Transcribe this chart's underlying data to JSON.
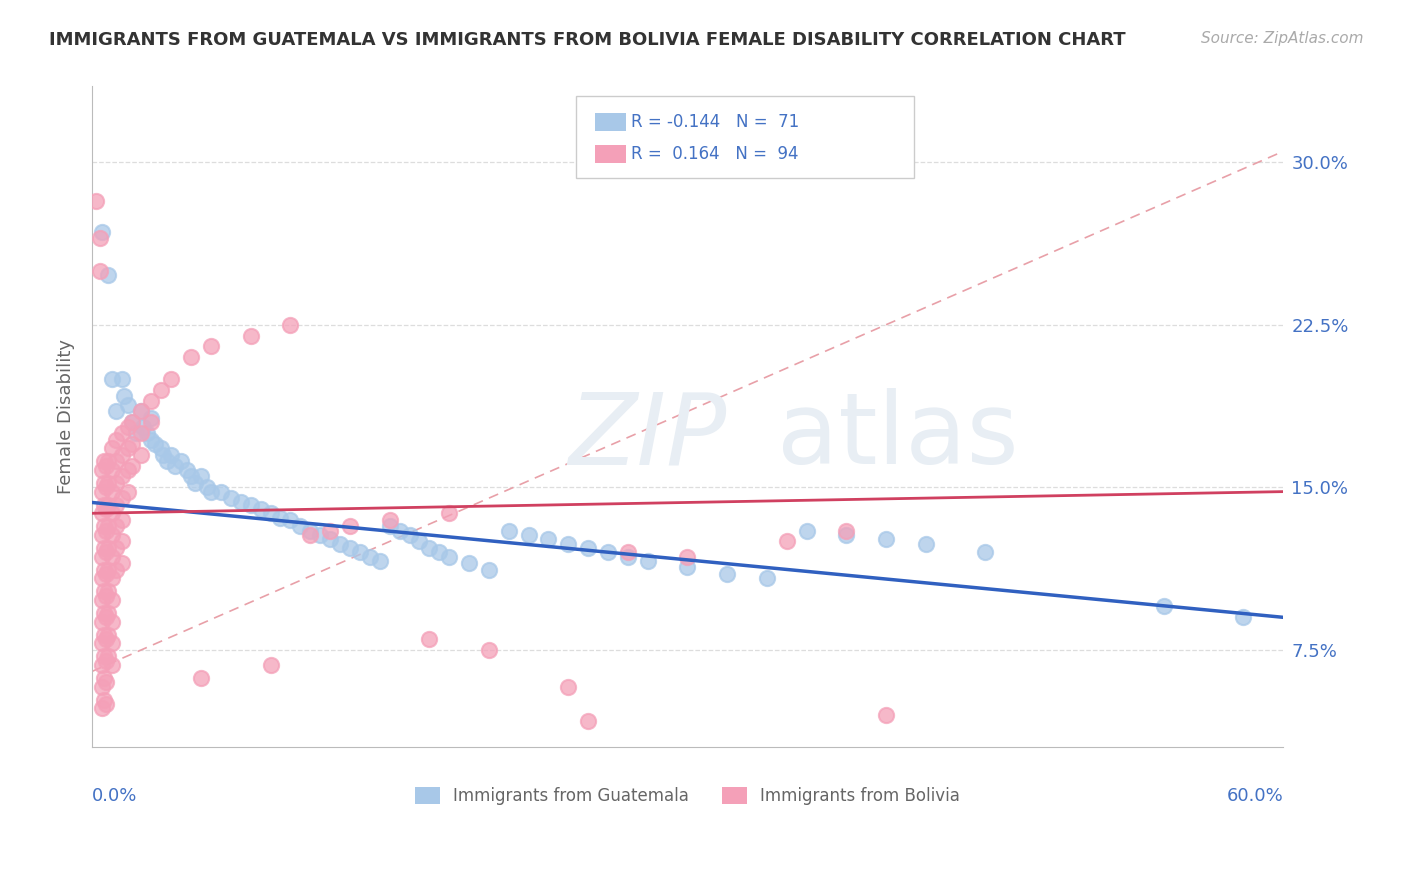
{
  "title": "IMMIGRANTS FROM GUATEMALA VS IMMIGRANTS FROM BOLIVIA FEMALE DISABILITY CORRELATION CHART",
  "source": "Source: ZipAtlas.com",
  "ylabel": "Female Disability",
  "ytick_labels": [
    "7.5%",
    "15.0%",
    "22.5%",
    "30.0%"
  ],
  "ytick_values": [
    0.075,
    0.15,
    0.225,
    0.3
  ],
  "xlim": [
    0.0,
    0.6
  ],
  "ylim": [
    0.03,
    0.335
  ],
  "xtick_left_label": "0.0%",
  "xtick_right_label": "60.0%",
  "color_guatemala": "#a8c8e8",
  "color_bolivia": "#f4a0b8",
  "trendline_color_guatemala": "#3060c0",
  "trendline_color_bolivia": "#d04060",
  "dashed_line_color": "#e8a0a8",
  "watermark_color": "#e8eef4",
  "scatter_guatemala": [
    [
      0.005,
      0.268
    ],
    [
      0.008,
      0.248
    ],
    [
      0.01,
      0.2
    ],
    [
      0.012,
      0.185
    ],
    [
      0.015,
      0.2
    ],
    [
      0.016,
      0.192
    ],
    [
      0.018,
      0.188
    ],
    [
      0.02,
      0.18
    ],
    [
      0.022,
      0.175
    ],
    [
      0.025,
      0.185
    ],
    [
      0.026,
      0.178
    ],
    [
      0.028,
      0.175
    ],
    [
      0.03,
      0.182
    ],
    [
      0.03,
      0.172
    ],
    [
      0.032,
      0.17
    ],
    [
      0.035,
      0.168
    ],
    [
      0.036,
      0.165
    ],
    [
      0.038,
      0.162
    ],
    [
      0.04,
      0.165
    ],
    [
      0.042,
      0.16
    ],
    [
      0.045,
      0.162
    ],
    [
      0.048,
      0.158
    ],
    [
      0.05,
      0.155
    ],
    [
      0.052,
      0.152
    ],
    [
      0.055,
      0.155
    ],
    [
      0.058,
      0.15
    ],
    [
      0.06,
      0.148
    ],
    [
      0.065,
      0.148
    ],
    [
      0.07,
      0.145
    ],
    [
      0.075,
      0.143
    ],
    [
      0.08,
      0.142
    ],
    [
      0.085,
      0.14
    ],
    [
      0.09,
      0.138
    ],
    [
      0.095,
      0.136
    ],
    [
      0.1,
      0.135
    ],
    [
      0.105,
      0.132
    ],
    [
      0.11,
      0.13
    ],
    [
      0.115,
      0.128
    ],
    [
      0.12,
      0.126
    ],
    [
      0.125,
      0.124
    ],
    [
      0.13,
      0.122
    ],
    [
      0.135,
      0.12
    ],
    [
      0.14,
      0.118
    ],
    [
      0.145,
      0.116
    ],
    [
      0.15,
      0.132
    ],
    [
      0.155,
      0.13
    ],
    [
      0.16,
      0.128
    ],
    [
      0.165,
      0.125
    ],
    [
      0.17,
      0.122
    ],
    [
      0.175,
      0.12
    ],
    [
      0.18,
      0.118
    ],
    [
      0.19,
      0.115
    ],
    [
      0.2,
      0.112
    ],
    [
      0.21,
      0.13
    ],
    [
      0.22,
      0.128
    ],
    [
      0.23,
      0.126
    ],
    [
      0.24,
      0.124
    ],
    [
      0.25,
      0.122
    ],
    [
      0.26,
      0.12
    ],
    [
      0.27,
      0.118
    ],
    [
      0.28,
      0.116
    ],
    [
      0.3,
      0.113
    ],
    [
      0.32,
      0.11
    ],
    [
      0.34,
      0.108
    ],
    [
      0.36,
      0.13
    ],
    [
      0.38,
      0.128
    ],
    [
      0.4,
      0.126
    ],
    [
      0.42,
      0.124
    ],
    [
      0.45,
      0.12
    ],
    [
      0.54,
      0.095
    ],
    [
      0.58,
      0.09
    ]
  ],
  "scatter_bolivia": [
    [
      0.002,
      0.282
    ],
    [
      0.004,
      0.265
    ],
    [
      0.004,
      0.25
    ],
    [
      0.005,
      0.158
    ],
    [
      0.005,
      0.148
    ],
    [
      0.005,
      0.138
    ],
    [
      0.005,
      0.128
    ],
    [
      0.005,
      0.118
    ],
    [
      0.005,
      0.108
    ],
    [
      0.005,
      0.098
    ],
    [
      0.005,
      0.088
    ],
    [
      0.005,
      0.078
    ],
    [
      0.005,
      0.068
    ],
    [
      0.005,
      0.058
    ],
    [
      0.005,
      0.048
    ],
    [
      0.006,
      0.162
    ],
    [
      0.006,
      0.152
    ],
    [
      0.006,
      0.142
    ],
    [
      0.006,
      0.132
    ],
    [
      0.006,
      0.122
    ],
    [
      0.006,
      0.112
    ],
    [
      0.006,
      0.102
    ],
    [
      0.006,
      0.092
    ],
    [
      0.006,
      0.082
    ],
    [
      0.006,
      0.072
    ],
    [
      0.006,
      0.062
    ],
    [
      0.006,
      0.052
    ],
    [
      0.007,
      0.16
    ],
    [
      0.007,
      0.15
    ],
    [
      0.007,
      0.14
    ],
    [
      0.007,
      0.13
    ],
    [
      0.007,
      0.12
    ],
    [
      0.007,
      0.11
    ],
    [
      0.007,
      0.1
    ],
    [
      0.007,
      0.09
    ],
    [
      0.007,
      0.08
    ],
    [
      0.007,
      0.07
    ],
    [
      0.007,
      0.06
    ],
    [
      0.007,
      0.05
    ],
    [
      0.008,
      0.162
    ],
    [
      0.008,
      0.152
    ],
    [
      0.008,
      0.142
    ],
    [
      0.008,
      0.132
    ],
    [
      0.008,
      0.122
    ],
    [
      0.008,
      0.112
    ],
    [
      0.008,
      0.102
    ],
    [
      0.008,
      0.092
    ],
    [
      0.008,
      0.082
    ],
    [
      0.008,
      0.072
    ],
    [
      0.01,
      0.168
    ],
    [
      0.01,
      0.158
    ],
    [
      0.01,
      0.148
    ],
    [
      0.01,
      0.138
    ],
    [
      0.01,
      0.128
    ],
    [
      0.01,
      0.118
    ],
    [
      0.01,
      0.108
    ],
    [
      0.01,
      0.098
    ],
    [
      0.01,
      0.088
    ],
    [
      0.01,
      0.078
    ],
    [
      0.01,
      0.068
    ],
    [
      0.012,
      0.172
    ],
    [
      0.012,
      0.162
    ],
    [
      0.012,
      0.152
    ],
    [
      0.012,
      0.142
    ],
    [
      0.012,
      0.132
    ],
    [
      0.012,
      0.122
    ],
    [
      0.012,
      0.112
    ],
    [
      0.015,
      0.175
    ],
    [
      0.015,
      0.165
    ],
    [
      0.015,
      0.155
    ],
    [
      0.015,
      0.145
    ],
    [
      0.015,
      0.135
    ],
    [
      0.015,
      0.125
    ],
    [
      0.015,
      0.115
    ],
    [
      0.018,
      0.178
    ],
    [
      0.018,
      0.168
    ],
    [
      0.018,
      0.158
    ],
    [
      0.018,
      0.148
    ],
    [
      0.02,
      0.18
    ],
    [
      0.02,
      0.17
    ],
    [
      0.02,
      0.16
    ],
    [
      0.025,
      0.185
    ],
    [
      0.025,
      0.175
    ],
    [
      0.025,
      0.165
    ],
    [
      0.03,
      0.19
    ],
    [
      0.03,
      0.18
    ],
    [
      0.035,
      0.195
    ],
    [
      0.04,
      0.2
    ],
    [
      0.05,
      0.21
    ],
    [
      0.06,
      0.215
    ],
    [
      0.08,
      0.22
    ],
    [
      0.1,
      0.225
    ],
    [
      0.11,
      0.128
    ],
    [
      0.12,
      0.13
    ],
    [
      0.13,
      0.132
    ],
    [
      0.15,
      0.135
    ],
    [
      0.18,
      0.138
    ],
    [
      0.055,
      0.062
    ],
    [
      0.09,
      0.068
    ],
    [
      0.17,
      0.08
    ],
    [
      0.2,
      0.075
    ],
    [
      0.24,
      0.058
    ],
    [
      0.25,
      0.042
    ],
    [
      0.27,
      0.12
    ],
    [
      0.3,
      0.118
    ],
    [
      0.35,
      0.125
    ],
    [
      0.38,
      0.13
    ],
    [
      0.4,
      0.045
    ]
  ]
}
